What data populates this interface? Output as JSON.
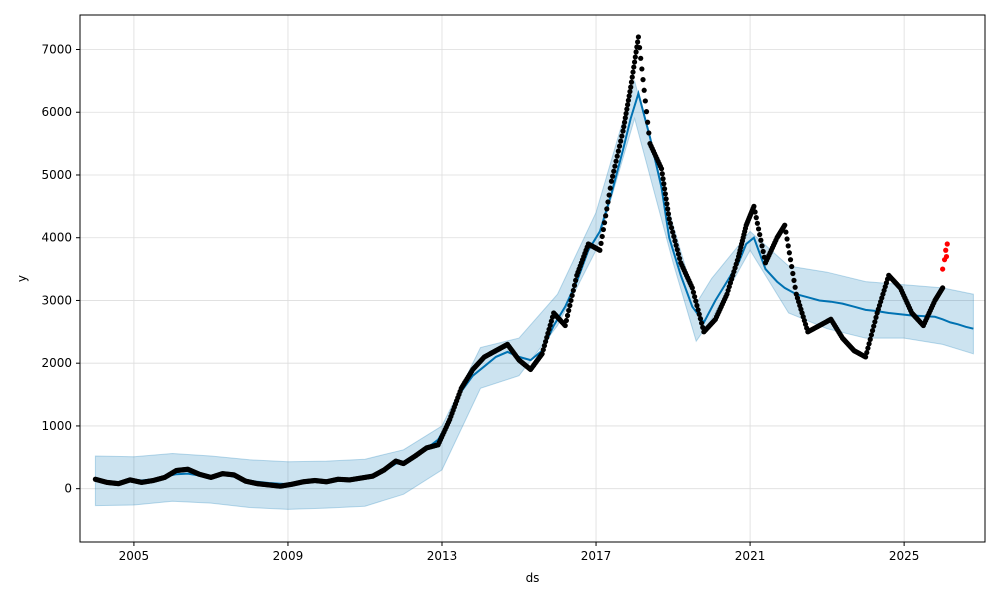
{
  "chart_data": {
    "type": "scatter",
    "title": "",
    "xlabel": "ds",
    "ylabel": "y",
    "xlim": [
      2003.6,
      2027.1
    ],
    "ylim": [
      -850,
      7550
    ],
    "x_ticks": [
      2005,
      2009,
      2013,
      2017,
      2021,
      2025
    ],
    "x_tick_labels": [
      "2005",
      "2009",
      "2013",
      "2017",
      "2021",
      "2025"
    ],
    "y_ticks": [
      0,
      1000,
      2000,
      3000,
      4000,
      5000,
      6000,
      7000
    ],
    "y_tick_labels": [
      "0",
      "1000",
      "2000",
      "3000",
      "4000",
      "5000",
      "6000",
      "7000"
    ],
    "grid": true,
    "legend": "none",
    "colors": {
      "observed": "#000000",
      "recent_observed": "#ff0000",
      "forecast_line": "#0072b2",
      "uncertainty_band": "#0072b2"
    },
    "series": [
      {
        "role": "observed",
        "x": [
          2004.0,
          2004.3,
          2004.6,
          2004.9,
          2005.2,
          2005.5,
          2005.8,
          2006.1,
          2006.4,
          2006.7,
          2007.0,
          2007.3,
          2007.6,
          2007.9,
          2008.2,
          2008.5,
          2008.8,
          2009.1,
          2009.4,
          2009.7,
          2010.0,
          2010.3,
          2010.6,
          2010.9,
          2011.2,
          2011.5,
          2011.8,
          2012.0,
          2012.3,
          2012.6,
          2012.9,
          2013.2,
          2013.5,
          2013.8,
          2014.1,
          2014.4,
          2014.7,
          2015.0,
          2015.3,
          2015.6,
          2015.9,
          2016.2,
          2016.5,
          2016.8,
          2017.1,
          2017.4,
          2017.7,
          2017.9,
          2018.1,
          2018.4,
          2018.7,
          2018.9,
          2019.2,
          2019.5,
          2019.8,
          2020.1,
          2020.4,
          2020.7,
          2020.9,
          2021.1,
          2021.4,
          2021.7,
          2021.9,
          2022.2,
          2022.5,
          2022.8,
          2023.1,
          2023.4,
          2023.7,
          2024.0,
          2024.3,
          2024.6,
          2024.9,
          2025.2,
          2025.5,
          2025.8,
          2026.0
        ],
        "y": [
          150,
          100,
          80,
          140,
          100,
          130,
          180,
          290,
          310,
          230,
          180,
          240,
          220,
          120,
          80,
          60,
          40,
          70,
          110,
          130,
          110,
          150,
          140,
          170,
          200,
          300,
          440,
          400,
          520,
          650,
          700,
          1100,
          1600,
          1900,
          2100,
          2200,
          2300,
          2050,
          1900,
          2150,
          2800,
          2600,
          3400,
          3900,
          3800,
          4900,
          5700,
          6400,
          7200,
          5500,
          5100,
          4300,
          3600,
          3200,
          2500,
          2700,
          3100,
          3700,
          4200,
          4500,
          3600,
          4000,
          4200,
          3100,
          2500,
          2600,
          2700,
          2400,
          2200,
          2100,
          2800,
          3400,
          3200,
          2800,
          2600,
          3000,
          3200
        ]
      },
      {
        "role": "recent_observed",
        "x": [
          2026.0,
          2026.05,
          2026.08,
          2026.1,
          2026.12
        ],
        "y": [
          3500,
          3650,
          3800,
          3700,
          3900
        ]
      },
      {
        "role": "forecast",
        "x": [
          2004.0,
          2004.3,
          2004.6,
          2004.9,
          2005.2,
          2005.5,
          2005.8,
          2006.1,
          2006.4,
          2006.7,
          2007.0,
          2007.3,
          2007.6,
          2007.9,
          2008.2,
          2008.5,
          2008.8,
          2009.1,
          2009.4,
          2009.7,
          2010.0,
          2010.3,
          2010.6,
          2010.9,
          2011.2,
          2011.5,
          2011.8,
          2012.0,
          2012.3,
          2012.6,
          2012.9,
          2013.2,
          2013.5,
          2013.8,
          2014.1,
          2014.4,
          2014.7,
          2015.0,
          2015.3,
          2015.6,
          2015.9,
          2016.2,
          2016.5,
          2016.8,
          2017.1,
          2017.4,
          2017.7,
          2017.9,
          2018.1,
          2018.4,
          2018.7,
          2018.9,
          2019.2,
          2019.5,
          2019.8,
          2020.1,
          2020.4,
          2020.7,
          2020.9,
          2021.1,
          2021.4,
          2021.7,
          2021.9,
          2022.2,
          2022.5,
          2022.8,
          2023.1,
          2023.4,
          2023.7,
          2024.0,
          2024.3,
          2024.6,
          2024.9,
          2025.2,
          2025.5,
          2025.8,
          2026.0,
          2026.2,
          2026.4,
          2026.6,
          2026.8
        ],
        "y": [
          140,
          120,
          100,
          150,
          130,
          150,
          190,
          230,
          240,
          210,
          200,
          230,
          190,
          140,
          110,
          90,
          80,
          70,
          100,
          120,
          130,
          140,
          150,
          170,
          200,
          280,
          400,
          430,
          500,
          640,
          780,
          1100,
          1550,
          1800,
          1950,
          2100,
          2180,
          2100,
          2050,
          2200,
          2600,
          2900,
          3300,
          3800,
          4100,
          4700,
          5400,
          5900,
          6300,
          5600,
          4800,
          4000,
          3400,
          2900,
          2650,
          3000,
          3300,
          3600,
          3900,
          4000,
          3500,
          3300,
          3200,
          3100,
          3050,
          3000,
          2980,
          2950,
          2900,
          2850,
          2830,
          2800,
          2780,
          2760,
          2750,
          2740,
          2700,
          2650,
          2620,
          2580,
          2550
        ]
      },
      {
        "role": "uncertainty_band",
        "x": [
          2004.0,
          2005.0,
          2006.0,
          2007.0,
          2008.0,
          2009.0,
          2010.0,
          2011.0,
          2012.0,
          2013.0,
          2014.0,
          2015.0,
          2016.0,
          2017.0,
          2018.0,
          2019.0,
          2019.6,
          2020.0,
          2021.0,
          2022.0,
          2023.0,
          2024.0,
          2025.0,
          2026.0,
          2026.8
        ],
        "upper": [
          520,
          510,
          560,
          520,
          460,
          430,
          440,
          470,
          620,
          1000,
          2250,
          2400,
          3100,
          4400,
          6500,
          4200,
          2950,
          3350,
          4100,
          3550,
          3450,
          3300,
          3250,
          3200,
          3100
        ],
        "lower": [
          -270,
          -260,
          -200,
          -230,
          -300,
          -330,
          -310,
          -280,
          -90,
          300,
          1600,
          1800,
          2600,
          3800,
          5900,
          3600,
          2350,
          2700,
          3800,
          2800,
          2550,
          2400,
          2400,
          2300,
          2150
        ]
      }
    ]
  }
}
